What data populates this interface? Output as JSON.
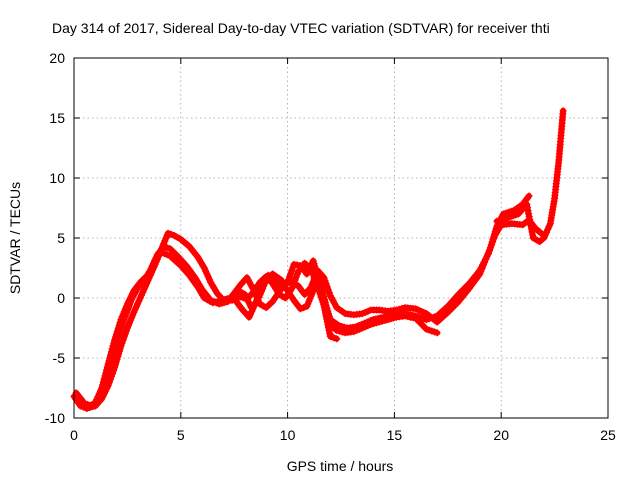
{
  "chart_data": {
    "type": "line",
    "title": "Day 314 of 2017, Sidereal Day-to-day VTEC variation (SDTVAR) for receiver thti",
    "xlabel": "GPS time / hours",
    "ylabel": "SDTVAR / TECUs",
    "xlim": [
      0,
      25
    ],
    "ylim": [
      -10,
      20
    ],
    "xticks": [
      0,
      5,
      10,
      15,
      20,
      25
    ],
    "yticks": [
      -10,
      -5,
      0,
      5,
      10,
      15,
      20
    ],
    "grid": true,
    "marker": "+",
    "series": [
      {
        "name": "SDTVAR",
        "color": "#ff0000",
        "segments": [
          [
            [
              0.0,
              -8.2
            ],
            [
              0.3,
              -9.0
            ],
            [
              0.6,
              -9.2
            ],
            [
              1.0,
              -8.7
            ],
            [
              1.3,
              -7.5
            ],
            [
              1.6,
              -5.5
            ],
            [
              1.9,
              -3.5
            ],
            [
              2.2,
              -1.8
            ],
            [
              2.5,
              -0.5
            ],
            [
              2.8,
              0.6
            ],
            [
              3.1,
              1.3
            ],
            [
              3.5,
              2.0
            ],
            [
              3.8,
              3.2
            ],
            [
              4.1,
              3.8
            ],
            [
              4.5,
              3.5
            ],
            [
              5.0,
              2.7
            ],
            [
              5.4,
              1.9
            ],
            [
              5.8,
              0.9
            ],
            [
              6.1,
              0.0
            ],
            [
              6.5,
              -0.4
            ],
            [
              6.9,
              -0.2
            ],
            [
              7.3,
              0.0
            ],
            [
              7.7,
              0.6
            ],
            [
              8.0,
              0.3
            ],
            [
              8.3,
              -0.8
            ],
            [
              8.6,
              -0.2
            ],
            [
              9.0,
              1.5
            ],
            [
              9.3,
              2.0
            ],
            [
              9.7,
              1.5
            ],
            [
              10.0,
              0.6
            ],
            [
              10.3,
              -0.2
            ],
            [
              10.6,
              -0.9
            ],
            [
              10.9,
              -0.7
            ],
            [
              11.2,
              0.6
            ],
            [
              11.5,
              1.5
            ],
            [
              11.8,
              -0.6
            ],
            [
              12.0,
              -1.8
            ],
            [
              12.4,
              -2.3
            ],
            [
              12.8,
              -2.5
            ],
            [
              13.2,
              -2.4
            ],
            [
              13.6,
              -2.1
            ],
            [
              14.0,
              -1.8
            ],
            [
              14.5,
              -1.6
            ],
            [
              15.0,
              -1.4
            ],
            [
              15.5,
              -1.3
            ],
            [
              16.0,
              -1.5
            ],
            [
              16.5,
              -1.8
            ],
            [
              17.0,
              -1.5
            ],
            [
              17.5,
              -0.7
            ],
            [
              18.0,
              0.3
            ],
            [
              18.5,
              1.2
            ],
            [
              19.0,
              2.3
            ],
            [
              19.4,
              3.7
            ],
            [
              19.7,
              5.2
            ],
            [
              20.0,
              6.1
            ],
            [
              20.5,
              6.2
            ],
            [
              21.0,
              6.1
            ],
            [
              21.3,
              6.5
            ],
            [
              21.6,
              5.8
            ],
            [
              22.0,
              5.2
            ]
          ],
          [
            [
              0.1,
              -7.9
            ],
            [
              0.5,
              -8.8
            ],
            [
              0.9,
              -9.0
            ],
            [
              1.2,
              -8.1
            ],
            [
              1.5,
              -6.7
            ],
            [
              1.8,
              -4.8
            ],
            [
              2.1,
              -3.0
            ],
            [
              2.4,
              -1.5
            ],
            [
              2.7,
              -0.1
            ],
            [
              3.0,
              0.9
            ],
            [
              3.3,
              1.5
            ],
            [
              3.6,
              2.4
            ],
            [
              3.9,
              3.6
            ],
            [
              4.2,
              4.3
            ],
            [
              4.5,
              4.1
            ],
            [
              4.9,
              3.4
            ],
            [
              5.3,
              2.6
            ],
            [
              5.7,
              1.6
            ],
            [
              6.0,
              0.7
            ],
            [
              6.4,
              -0.2
            ],
            [
              6.8,
              -0.5
            ],
            [
              7.2,
              -0.3
            ],
            [
              7.5,
              0.4
            ],
            [
              7.8,
              1.1
            ],
            [
              8.1,
              1.7
            ],
            [
              8.4,
              0.7
            ],
            [
              8.7,
              -0.5
            ],
            [
              9.0,
              -0.8
            ],
            [
              9.3,
              -0.3
            ],
            [
              9.6,
              0.5
            ],
            [
              9.9,
              1.2
            ],
            [
              10.2,
              1.4
            ],
            [
              10.5,
              1.0
            ],
            [
              10.8,
              0.3
            ],
            [
              11.1,
              0.9
            ],
            [
              11.4,
              2.3
            ],
            [
              11.7,
              1.7
            ],
            [
              12.0,
              0.2
            ],
            [
              12.3,
              -0.8
            ],
            [
              12.7,
              -1.3
            ],
            [
              13.1,
              -1.4
            ],
            [
              13.5,
              -1.3
            ],
            [
              13.9,
              -1.0
            ],
            [
              14.3,
              -1.0
            ],
            [
              14.7,
              -1.1
            ],
            [
              15.1,
              -1.0
            ],
            [
              15.5,
              -0.8
            ],
            [
              16.0,
              -0.9
            ],
            [
              16.5,
              -1.3
            ],
            [
              17.0,
              -2.0
            ],
            [
              17.5,
              -1.2
            ],
            [
              18.0,
              -0.3
            ],
            [
              18.5,
              0.8
            ],
            [
              19.0,
              2.0
            ],
            [
              19.5,
              4.2
            ],
            [
              19.8,
              6.0
            ],
            [
              20.1,
              7.0
            ],
            [
              20.6,
              7.3
            ],
            [
              21.0,
              7.8
            ],
            [
              21.3,
              8.5
            ]
          ],
          [
            [
              0.2,
              -8.7
            ],
            [
              0.6,
              -9.2
            ],
            [
              1.0,
              -9.0
            ],
            [
              1.3,
              -8.4
            ],
            [
              1.6,
              -7.3
            ],
            [
              1.9,
              -5.8
            ],
            [
              2.2,
              -4.0
            ],
            [
              2.5,
              -2.5
            ],
            [
              2.8,
              -1.2
            ],
            [
              3.1,
              0.0
            ],
            [
              3.4,
              1.2
            ],
            [
              3.8,
              2.8
            ],
            [
              4.1,
              4.1
            ],
            [
              4.4,
              5.4
            ],
            [
              4.7,
              5.2
            ],
            [
              5.0,
              4.9
            ],
            [
              5.4,
              4.3
            ],
            [
              5.8,
              3.4
            ],
            [
              6.1,
              2.5
            ],
            [
              6.4,
              1.3
            ],
            [
              6.7,
              0.4
            ],
            [
              7.0,
              -0.2
            ],
            [
              7.4,
              -0.2
            ],
            [
              7.8,
              0.1
            ],
            [
              8.1,
              -0.1
            ],
            [
              8.4,
              0.5
            ],
            [
              8.7,
              1.3
            ],
            [
              9.0,
              1.8
            ],
            [
              9.3,
              1.2
            ],
            [
              9.6,
              0.3
            ],
            [
              9.9,
              0.0
            ],
            [
              10.2,
              0.8
            ],
            [
              10.5,
              2.2
            ],
            [
              10.8,
              2.9
            ],
            [
              11.1,
              2.4
            ],
            [
              11.4,
              1.0
            ],
            [
              11.7,
              -0.6
            ],
            [
              12.0,
              -2.2
            ],
            [
              12.3,
              -2.7
            ],
            [
              12.7,
              -2.9
            ],
            [
              13.1,
              -2.8
            ],
            [
              13.5,
              -2.5
            ],
            [
              13.9,
              -2.2
            ],
            [
              14.3,
              -2.0
            ],
            [
              14.7,
              -1.8
            ],
            [
              15.1,
              -1.6
            ],
            [
              15.5,
              -1.5
            ],
            [
              16.0,
              -1.7
            ],
            [
              16.5,
              -2.6
            ],
            [
              17.0,
              -2.9
            ]
          ],
          [
            [
              7.6,
              -0.3
            ],
            [
              7.9,
              -1.0
            ],
            [
              8.2,
              -1.6
            ],
            [
              8.5,
              -0.4
            ],
            [
              8.8,
              0.8
            ],
            [
              9.1,
              1.9
            ],
            [
              9.4,
              1.4
            ],
            [
              9.7,
              0.8
            ],
            [
              10.0,
              1.3
            ],
            [
              10.3,
              2.8
            ],
            [
              10.6,
              2.7
            ],
            [
              10.9,
              2.0
            ],
            [
              11.2,
              3.1
            ],
            [
              11.5,
              1.2
            ],
            [
              11.8,
              -1.5
            ],
            [
              12.0,
              -3.2
            ],
            [
              12.3,
              -3.4
            ]
          ],
          [
            [
              19.8,
              6.4
            ],
            [
              20.3,
              6.7
            ],
            [
              20.8,
              7.0
            ],
            [
              21.2,
              7.8
            ],
            [
              21.5,
              5.0
            ],
            [
              21.8,
              4.7
            ],
            [
              22.0,
              5.0
            ],
            [
              22.3,
              6.2
            ],
            [
              22.5,
              8.3
            ],
            [
              22.7,
              11.5
            ],
            [
              22.9,
              15.6
            ]
          ]
        ]
      }
    ]
  }
}
